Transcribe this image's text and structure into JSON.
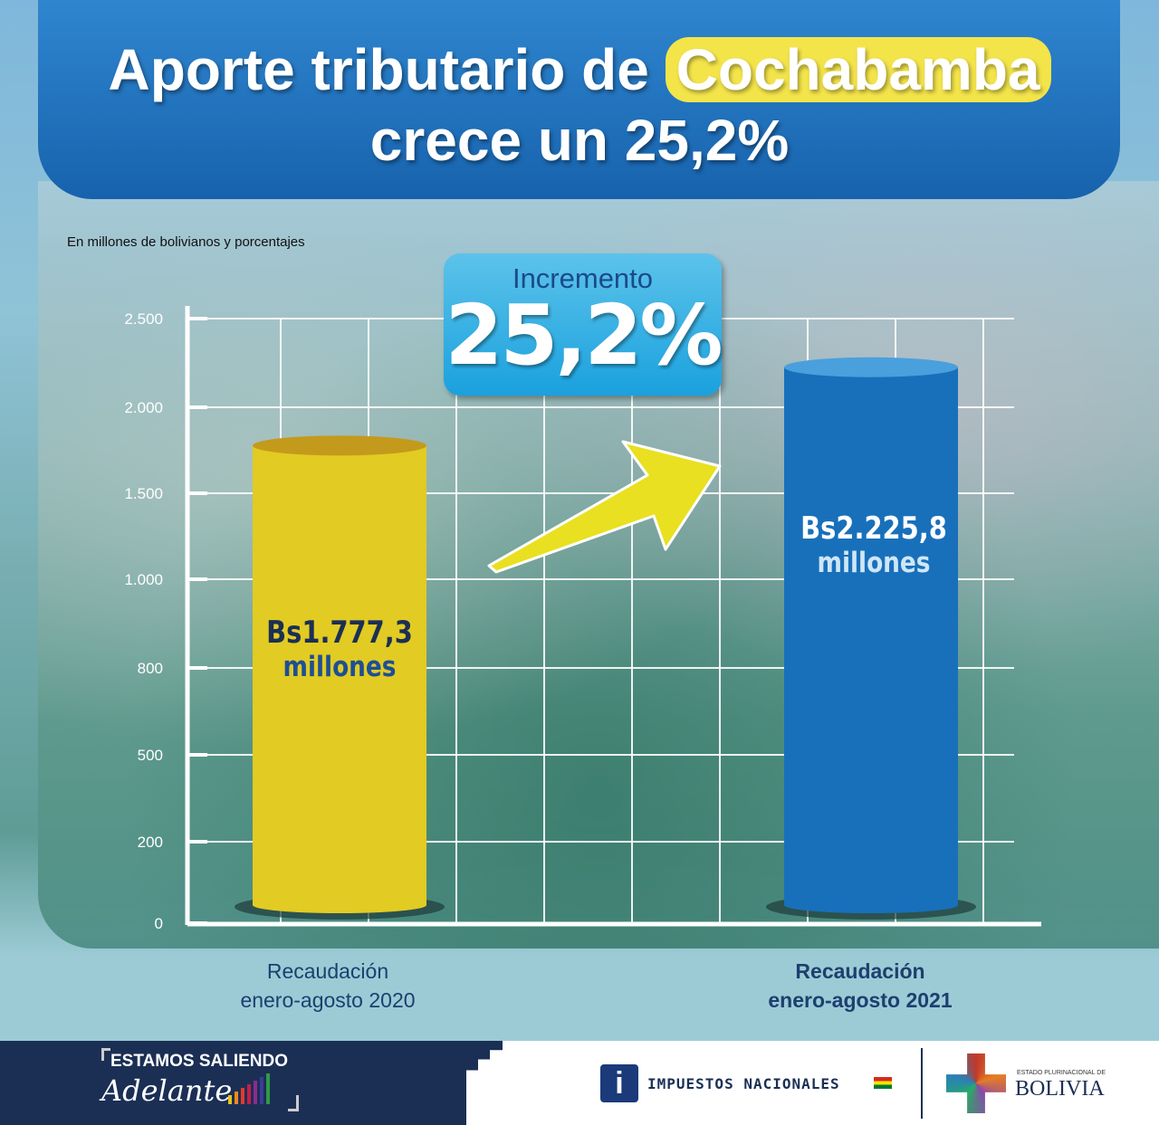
{
  "header": {
    "title_part1": "Aporte tributario de",
    "title_highlight": "Cochabamba",
    "title_line2": "crece un 25,2%"
  },
  "badge": {
    "label": "Incremento",
    "value": "25,2%"
  },
  "chart_data": {
    "type": "bar",
    "ylabel": "En millones de bolivianos y porcentajes",
    "yticks": [
      0,
      200,
      500,
      800,
      1000,
      1500,
      2000,
      2500
    ],
    "ytick_labels": [
      "0",
      "200",
      "500",
      "800",
      "1.000",
      "1.500",
      "2.000",
      "2.500"
    ],
    "ylim": [
      0,
      2500
    ],
    "grid": true,
    "categories": [
      [
        "Recaudación",
        "enero-agosto 2020"
      ],
      [
        "Recaudación",
        "enero-agosto 2021"
      ]
    ],
    "values": [
      1777.3,
      2225.8
    ],
    "data_labels": [
      [
        "Bs1.777,3",
        "millones"
      ],
      [
        "Bs2.225,8",
        "millones"
      ]
    ],
    "colors": [
      "#e2cb22",
      "#1870bb"
    ],
    "annotation": "Incremento 25,2%"
  },
  "footer": {
    "slogan_line1": "ESTAMOS SALIENDO",
    "slogan_line2": "Adelante",
    "org1": "IMPUESTOS NACIONALES",
    "org2_small": "ESTADO PLURINACIONAL DE",
    "org2": "BOLIVIA"
  }
}
